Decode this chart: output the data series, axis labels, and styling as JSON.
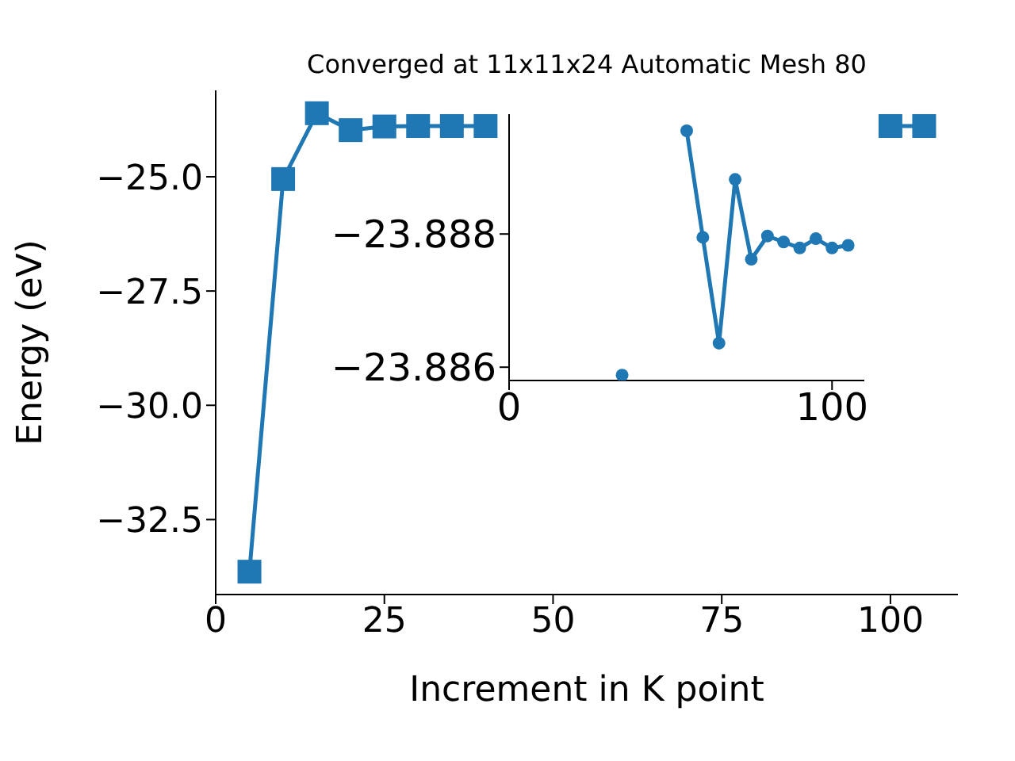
{
  "chart_data": [
    {
      "type": "line",
      "title": "Converged at 11x11x24 Automatic Mesh 80",
      "xlabel": "Increment in K point",
      "ylabel": "Energy (eV)",
      "x": [
        5,
        10,
        15,
        20,
        25,
        30,
        35,
        40,
        45,
        50,
        55,
        60,
        65,
        70,
        75,
        80,
        85,
        90,
        95,
        100,
        105
      ],
      "series": [
        {
          "color": "#1f77b4",
          "values": [
            -33.64,
            -25.05,
            -23.61,
            -23.98,
            -23.9,
            -23.89,
            -23.89,
            -23.89,
            null,
            null,
            null,
            null,
            null,
            null,
            null,
            null,
            null,
            null,
            null,
            -23.89,
            -23.89
          ]
        }
      ],
      "xlim": [
        0,
        110
      ],
      "ylim": [
        -34.14,
        -23.11
      ],
      "xticks": [
        0,
        25,
        50,
        75,
        100
      ],
      "yticks": [
        {
          "value": -32.5,
          "label": "−32.5"
        },
        {
          "value": -30,
          "label": "−30.0"
        },
        {
          "value": -27.5,
          "label": "−27.5"
        },
        {
          "value": -25,
          "label": "−25.0"
        }
      ],
      "marker": "square",
      "grid": false
    },
    {
      "type": "line",
      "x": [
        35,
        40,
        45,
        50,
        55,
        60,
        65,
        70,
        75,
        80,
        85,
        90,
        95,
        100,
        105
      ],
      "series": [
        {
          "color": "#1f77b4",
          "values": [
            -23.88588,
            null,
            null,
            null,
            -23.88955,
            -23.88795,
            -23.88636,
            -23.88882,
            -23.88762,
            -23.88797,
            -23.88788,
            -23.88779,
            -23.88793,
            -23.88779,
            -23.88783
          ]
        }
      ],
      "xlim": [
        0,
        110
      ],
      "ylim": [
        -23.8858,
        -23.8898
      ],
      "xticks": [
        0,
        100
      ],
      "yticks": [
        {
          "value": -23.888,
          "label": "−23.888"
        },
        {
          "value": -23.886,
          "label": "−23.886"
        }
      ],
      "marker": "circle",
      "grid": false
    }
  ]
}
